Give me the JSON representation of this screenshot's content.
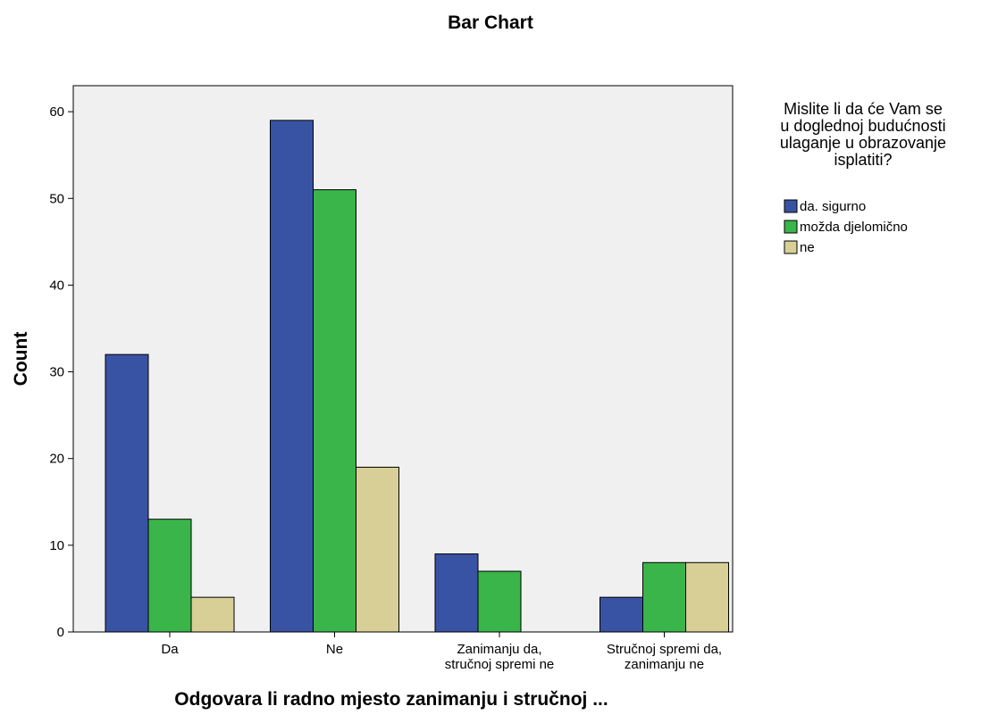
{
  "chart_data": {
    "type": "bar",
    "title": "Bar Chart",
    "xlabel": "Odgovara li radno mjesto zanimanju i stručnoj ...",
    "ylabel": "Count",
    "categories": [
      [
        "Da"
      ],
      [
        "Ne"
      ],
      [
        "Zanimanju da,",
        "stručnoj spremi ne"
      ],
      [
        "Stručnoj spremi da,",
        "zanimanju ne"
      ]
    ],
    "series": [
      {
        "name": "da. sigurno",
        "color": "#3953a4",
        "values": [
          32,
          59,
          9,
          4
        ]
      },
      {
        "name": "možda djelomično",
        "color": "#3ab54a",
        "values": [
          13,
          51,
          7,
          8
        ]
      },
      {
        "name": "ne",
        "color": "#d7cf96",
        "values": [
          4,
          19,
          0,
          8
        ]
      }
    ],
    "ylim": [
      0,
      63
    ],
    "yticks": [
      0,
      10,
      20,
      30,
      40,
      50,
      60
    ],
    "grid": false,
    "plot_background": "#f0f0f0",
    "legend": {
      "position": "right",
      "title_lines": [
        "Mislite li da će Vam se",
        "u doglednoj budućnosti",
        "ulaganje u obrazovanje",
        "isplatiti?"
      ]
    }
  }
}
